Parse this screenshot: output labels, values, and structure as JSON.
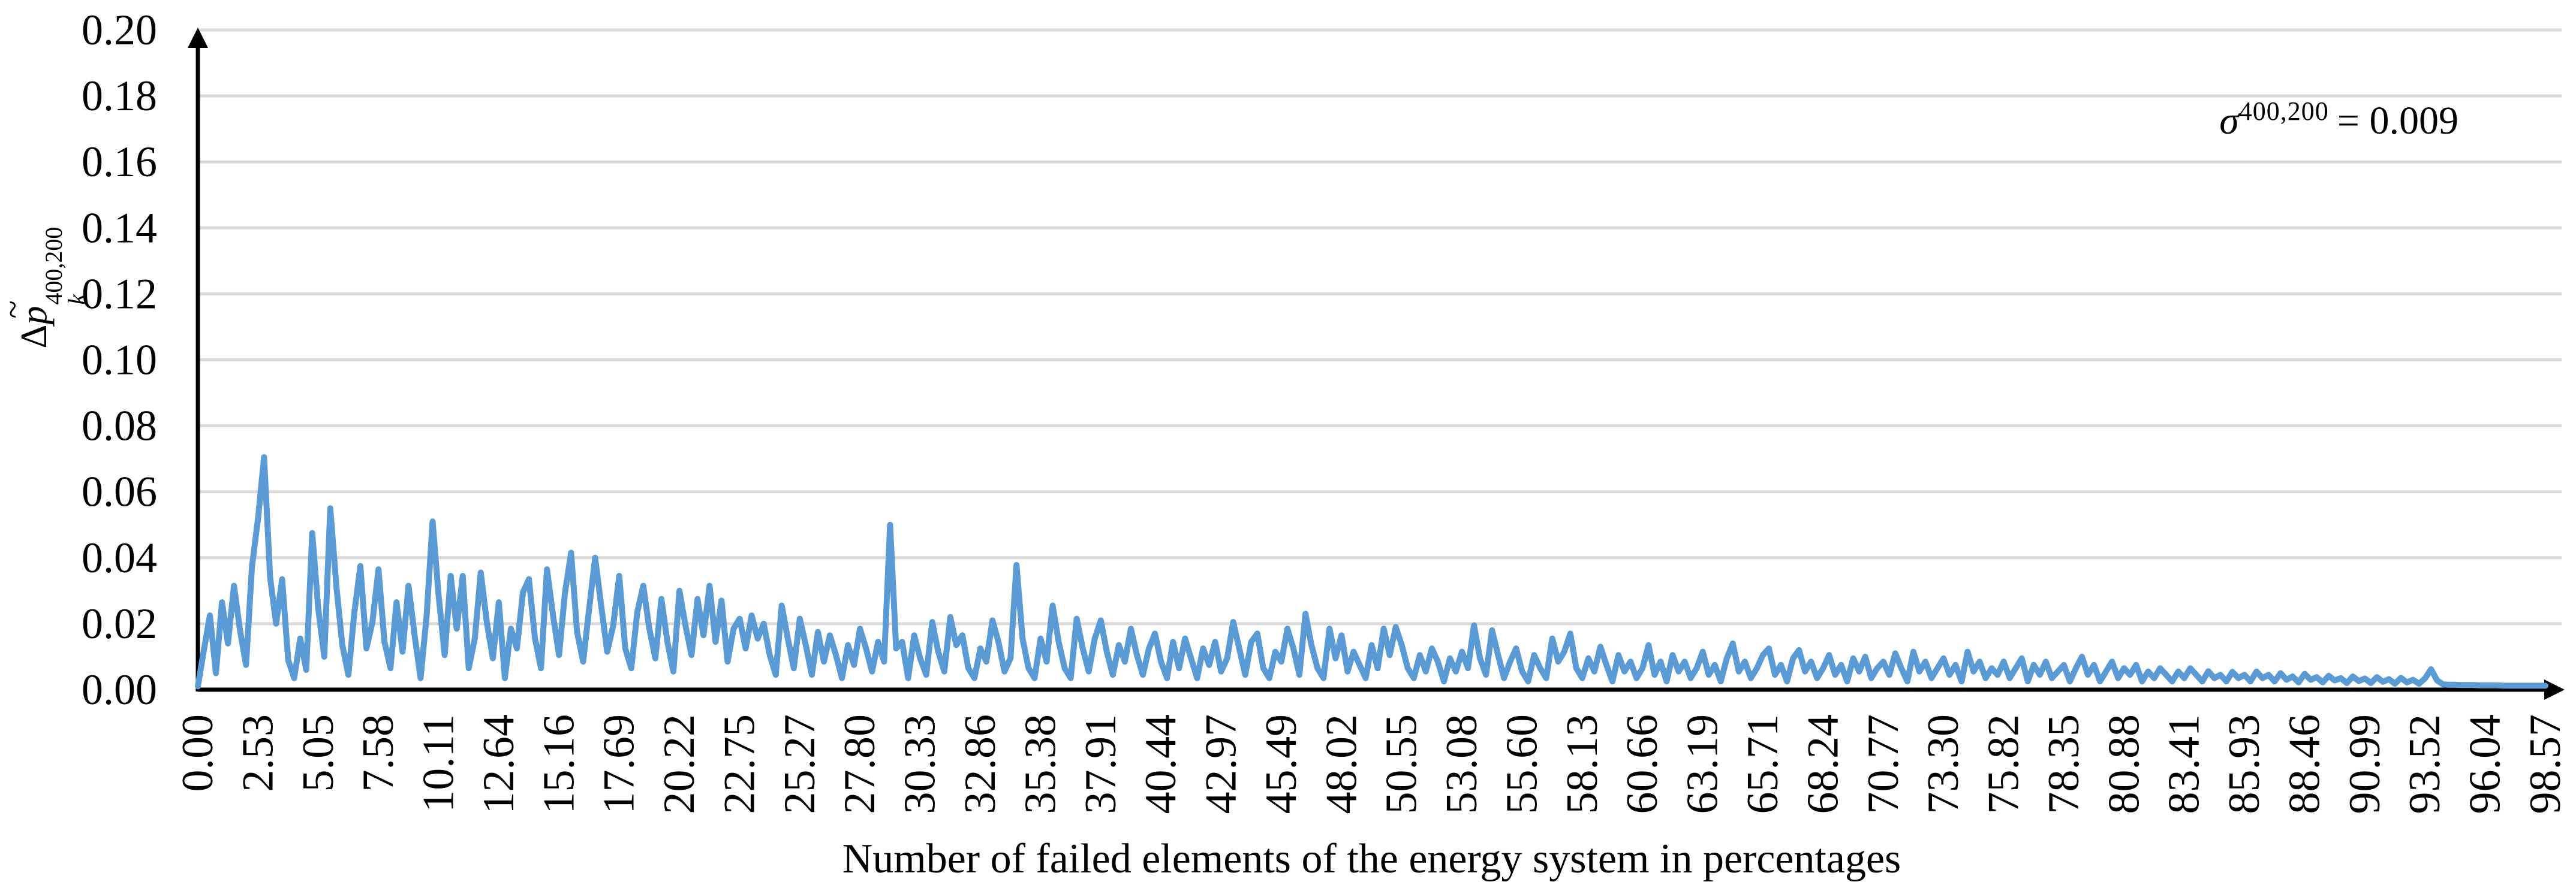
{
  "chart_data": {
    "type": "line",
    "title": "",
    "xlabel": "Number of failed elements of the energy system in percentages",
    "ylabel_parts": {
      "delta": "Δ",
      "p": "p",
      "tilde": "~",
      "sub": "k",
      "sup": "400,200"
    },
    "annotation": {
      "symbol": "σ",
      "sup": "400,200",
      "rest": "= 0.009"
    },
    "ylim": [
      0,
      0.2
    ],
    "x_range_percent": [
      0,
      98.57
    ],
    "grid": "horizontal",
    "legend": "none",
    "grid_color": "#D9D9D9",
    "axis_color": "#000000",
    "y_ticks": [
      "0.00",
      "0.02",
      "0.04",
      "0.06",
      "0.08",
      "0.10",
      "0.12",
      "0.14",
      "0.16",
      "0.18",
      "0.20"
    ],
    "x_ticks": [
      "0.00",
      "2.53",
      "5.05",
      "7.58",
      "10.11",
      "12.64",
      "15.16",
      "17.69",
      "20.22",
      "22.75",
      "25.27",
      "27.80",
      "30.33",
      "32.86",
      "35.38",
      "37.91",
      "40.44",
      "42.97",
      "45.49",
      "48.02",
      "50.55",
      "53.08",
      "55.60",
      "58.13",
      "60.66",
      "63.19",
      "65.71",
      "68.24",
      "70.77",
      "73.30",
      "75.82",
      "78.35",
      "80.88",
      "83.41",
      "85.93",
      "88.46",
      "90.99",
      "93.52",
      "96.04",
      "98.57"
    ],
    "x_ticks_every_n_points": 10,
    "series": [
      {
        "name": "Δp̃_k^400,200",
        "color": "#5B9BD5",
        "values": [
          0.001,
          0.012,
          0.0225,
          0.005,
          0.0265,
          0.014,
          0.0315,
          0.018,
          0.0075,
          0.0375,
          0.052,
          0.0705,
          0.034,
          0.02,
          0.0335,
          0.009,
          0.0035,
          0.0155,
          0.006,
          0.0475,
          0.0245,
          0.01,
          0.055,
          0.0315,
          0.0135,
          0.0045,
          0.0235,
          0.0375,
          0.0125,
          0.0205,
          0.0365,
          0.0145,
          0.0065,
          0.0265,
          0.0115,
          0.0315,
          0.0165,
          0.0035,
          0.0225,
          0.051,
          0.0285,
          0.0105,
          0.0345,
          0.0185,
          0.0345,
          0.0065,
          0.0155,
          0.0355,
          0.0205,
          0.0095,
          0.0265,
          0.0035,
          0.0185,
          0.0125,
          0.0295,
          0.0335,
          0.0155,
          0.0065,
          0.0365,
          0.0225,
          0.0105,
          0.0295,
          0.0415,
          0.0175,
          0.0085,
          0.0245,
          0.04,
          0.0255,
          0.0115,
          0.0195,
          0.0345,
          0.0125,
          0.0065,
          0.0235,
          0.0315,
          0.0185,
          0.0095,
          0.0275,
          0.0145,
          0.0055,
          0.03,
          0.0195,
          0.0105,
          0.0275,
          0.0165,
          0.0315,
          0.0145,
          0.027,
          0.0085,
          0.0185,
          0.0215,
          0.0125,
          0.0225,
          0.0155,
          0.02,
          0.0105,
          0.0045,
          0.0255,
          0.0155,
          0.0065,
          0.0215,
          0.0135,
          0.0045,
          0.0175,
          0.0085,
          0.0165,
          0.0105,
          0.0035,
          0.0135,
          0.0075,
          0.0185,
          0.0125,
          0.0055,
          0.0145,
          0.0085,
          0.05,
          0.0125,
          0.0145,
          0.0035,
          0.0165,
          0.0095,
          0.0045,
          0.0205,
          0.0115,
          0.0055,
          0.022,
          0.0135,
          0.0165,
          0.0065,
          0.0035,
          0.0125,
          0.0085,
          0.021,
          0.0145,
          0.0055,
          0.0095,
          0.0378,
          0.0155,
          0.0065,
          0.0035,
          0.0155,
          0.0085,
          0.0255,
          0.0145,
          0.0065,
          0.0035,
          0.0215,
          0.0125,
          0.0055,
          0.0155,
          0.021,
          0.0115,
          0.0045,
          0.0135,
          0.0085,
          0.0185,
          0.0105,
          0.0045,
          0.0125,
          0.017,
          0.0085,
          0.0035,
          0.0145,
          0.0065,
          0.0155,
          0.0095,
          0.0035,
          0.0125,
          0.0075,
          0.0145,
          0.0055,
          0.0095,
          0.0205,
          0.0125,
          0.0045,
          0.0145,
          0.017,
          0.0065,
          0.0035,
          0.0115,
          0.0085,
          0.0185,
          0.0125,
          0.0045,
          0.023,
          0.0135,
          0.0065,
          0.0035,
          0.0185,
          0.0095,
          0.0165,
          0.0055,
          0.0115,
          0.0075,
          0.0035,
          0.0135,
          0.0065,
          0.0185,
          0.0105,
          0.019,
          0.0135,
          0.0065,
          0.0035,
          0.0105,
          0.0055,
          0.0125,
          0.0085,
          0.0025,
          0.0095,
          0.0055,
          0.0115,
          0.0065,
          0.0195,
          0.0095,
          0.0045,
          0.018,
          0.0105,
          0.0035,
          0.0085,
          0.0125,
          0.0055,
          0.0025,
          0.0105,
          0.0065,
          0.0035,
          0.0155,
          0.0085,
          0.0115,
          0.017,
          0.0065,
          0.0035,
          0.0095,
          0.0055,
          0.013,
          0.0075,
          0.0025,
          0.0105,
          0.0055,
          0.0085,
          0.0035,
          0.0065,
          0.0135,
          0.0045,
          0.0085,
          0.0025,
          0.0105,
          0.0055,
          0.0085,
          0.0035,
          0.0065,
          0.0115,
          0.0045,
          0.0075,
          0.0025,
          0.0095,
          0.014,
          0.0055,
          0.0085,
          0.0035,
          0.0065,
          0.0105,
          0.0125,
          0.0045,
          0.0075,
          0.0025,
          0.0095,
          0.012,
          0.0055,
          0.0085,
          0.0035,
          0.0065,
          0.0105,
          0.0045,
          0.0075,
          0.0025,
          0.0095,
          0.0055,
          0.01,
          0.0035,
          0.0065,
          0.0085,
          0.0045,
          0.011,
          0.0065,
          0.0025,
          0.0115,
          0.0055,
          0.0085,
          0.0035,
          0.0065,
          0.0095,
          0.0045,
          0.0075,
          0.0025,
          0.0115,
          0.0055,
          0.0085,
          0.0035,
          0.0065,
          0.0045,
          0.0085,
          0.0035,
          0.0065,
          0.0095,
          0.0025,
          0.0075,
          0.0045,
          0.0085,
          0.0035,
          0.0055,
          0.0075,
          0.0025,
          0.0065,
          0.01,
          0.0045,
          0.0075,
          0.0025,
          0.0055,
          0.0085,
          0.0035,
          0.0065,
          0.0045,
          0.0075,
          0.0025,
          0.0055,
          0.0035,
          0.0065,
          0.0045,
          0.0025,
          0.0055,
          0.0035,
          0.0065,
          0.0045,
          0.0025,
          0.0056,
          0.0035,
          0.0045,
          0.0025,
          0.0054,
          0.0035,
          0.0045,
          0.0025,
          0.0055,
          0.0035,
          0.0045,
          0.0025,
          0.005,
          0.003,
          0.004,
          0.0022,
          0.0048,
          0.003,
          0.0038,
          0.0022,
          0.0042,
          0.0028,
          0.0035,
          0.002,
          0.004,
          0.0026,
          0.0034,
          0.002,
          0.0038,
          0.0024,
          0.0032,
          0.0018,
          0.0036,
          0.0022,
          0.003,
          0.0018,
          0.0034,
          0.0062,
          0.0028,
          0.0016,
          0.0015,
          0.0015,
          0.0014,
          0.0014,
          0.0014,
          0.0013,
          0.0013,
          0.0013,
          0.0013,
          0.0012,
          0.0012,
          0.0012,
          0.0012,
          0.0012,
          0.0012,
          0.0012,
          0.0012
        ]
      }
    ]
  }
}
